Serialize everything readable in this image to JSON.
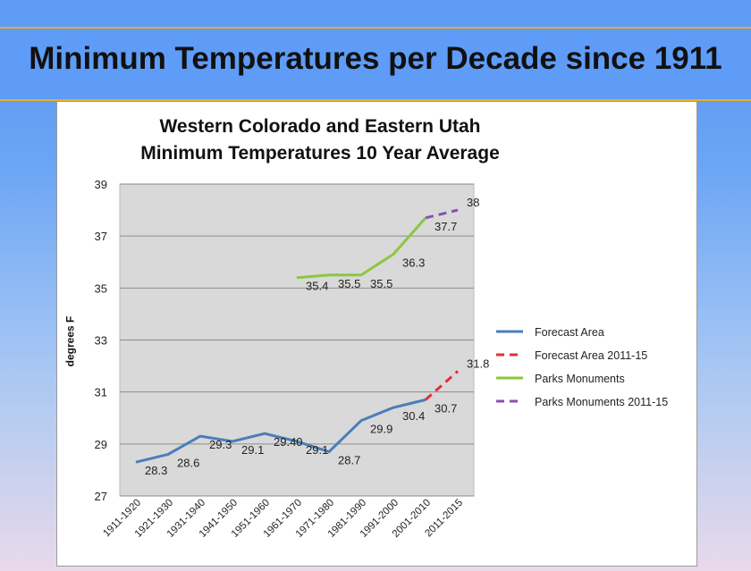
{
  "slide_title": "Minimum Temperatures per Decade since 1911",
  "chart_data": {
    "type": "line",
    "title": [
      "Western Colorado and Eastern Utah",
      "Minimum Temperatures 10 Year Average"
    ],
    "xlabel": "",
    "ylabel": "degrees F",
    "ylim": [
      27,
      39
    ],
    "yticks": [
      27,
      29,
      31,
      33,
      35,
      37,
      39
    ],
    "grid": true,
    "legend_position": "right",
    "categories": [
      "1911-1920",
      "1921-1930",
      "1931-1940",
      "1941-1950",
      "1951-1960",
      "1961-1970",
      "1971-1980",
      "1981-1990",
      "1991-2000",
      "2001-2010",
      "2011-2015"
    ],
    "series": [
      {
        "name": "Forecast Area",
        "color": "#4a7ebb",
        "dash": false,
        "values": [
          28.3,
          28.6,
          29.3,
          29.1,
          29.4,
          29.1,
          28.7,
          29.9,
          30.4,
          30.7,
          null
        ],
        "labels": [
          "28.3",
          "28.6",
          "29.3",
          "29.1",
          "29.40",
          "29.1",
          "28.7",
          "29.9",
          "30.4",
          "30.7",
          ""
        ]
      },
      {
        "name": "Forecast Area 2011-15",
        "color": "#e0303a",
        "dash": true,
        "values": [
          null,
          null,
          null,
          null,
          null,
          null,
          null,
          null,
          null,
          30.7,
          31.8
        ],
        "labels": [
          "",
          "",
          "",
          "",
          "",
          "",
          "",
          "",
          "",
          "",
          "31.8"
        ]
      },
      {
        "name": "Parks Monuments",
        "color": "#8cc63f",
        "dash": false,
        "values": [
          null,
          null,
          null,
          null,
          null,
          35.4,
          35.5,
          35.5,
          36.3,
          37.7,
          null
        ],
        "labels": [
          "",
          "",
          "",
          "",
          "",
          "35.4",
          "35.5",
          "35.5",
          "36.3",
          "37.7",
          ""
        ]
      },
      {
        "name": "Parks Monuments 2011-15",
        "color": "#8a4fb0",
        "dash": true,
        "values": [
          null,
          null,
          null,
          null,
          null,
          null,
          null,
          null,
          null,
          37.7,
          38
        ],
        "labels": [
          "",
          "",
          "",
          "",
          "",
          "",
          "",
          "",
          "",
          "",
          "38"
        ]
      }
    ]
  }
}
